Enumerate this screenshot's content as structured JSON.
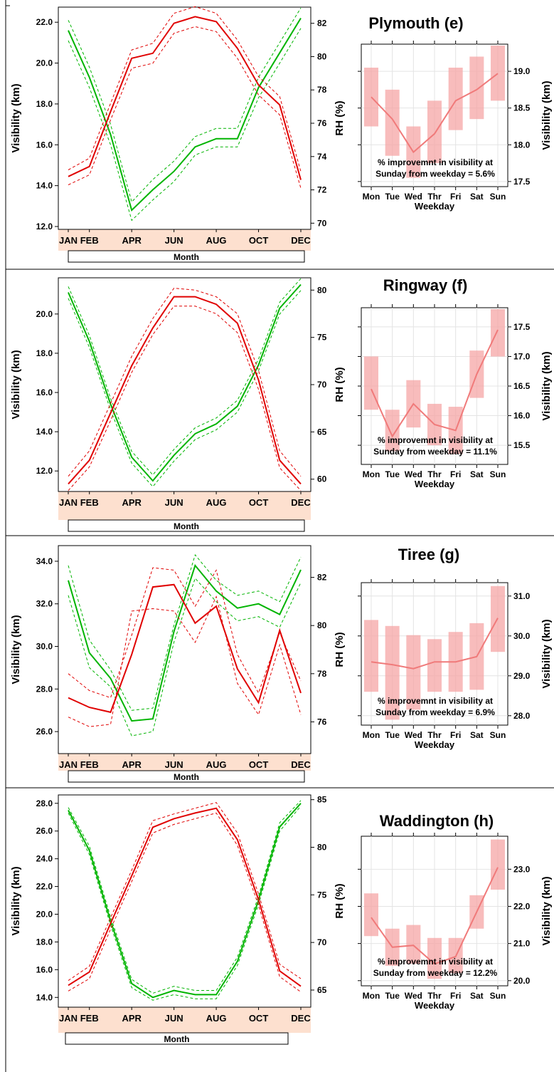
{
  "figure": {
    "panels": [
      {
        "title": "Plymouth (e)",
        "main_chart": {
          "type": "line",
          "xlabel": "Month",
          "ylabel_left": "Visibility (km)",
          "ylabel_right": "RH (%)",
          "x_ticks": [
            "JAN",
            "FEB",
            "APR",
            "JUN",
            "AUG",
            "OCT",
            "DEC"
          ],
          "months": [
            1,
            2,
            3,
            4,
            5,
            6,
            7,
            8,
            9,
            10,
            11,
            12
          ],
          "ylim_left": [
            12.0,
            22.6
          ],
          "yticks_left": [
            "12.0",
            "14.0",
            "16.0",
            "18.0",
            "20.0",
            "22.0"
          ],
          "ylim_right": [
            69.8,
            82.8
          ],
          "yticks_right": [
            "70",
            "72",
            "74",
            "76",
            "78",
            "80",
            "82"
          ],
          "series": [
            {
              "color": "#00b400",
              "axis": "left",
              "dashed": false,
              "values": [
                21.6,
                19.3,
                16.5,
                12.8,
                13.8,
                14.7,
                15.9,
                16.3,
                16.3,
                18.8,
                20.5,
                22.2
              ]
            },
            {
              "color": "#00b400",
              "axis": "left",
              "dashed": true,
              "values": [
                22.1,
                19.8,
                17.0,
                13.2,
                14.3,
                15.2,
                16.4,
                16.8,
                16.8,
                19.3,
                21.0,
                22.7
              ]
            },
            {
              "color": "#00b400",
              "axis": "left",
              "dashed": true,
              "values": [
                21.1,
                18.8,
                16.0,
                12.3,
                13.3,
                14.2,
                15.5,
                15.9,
                15.9,
                18.3,
                20.0,
                21.7
              ]
            },
            {
              "color": "#e00000",
              "axis": "right",
              "dashed": false,
              "values": [
                72.8,
                73.4,
                76.7,
                79.9,
                80.2,
                82.0,
                82.4,
                82.1,
                80.5,
                78.3,
                77.1,
                72.6
              ]
            },
            {
              "color": "#e00000",
              "axis": "right",
              "dashed": true,
              "values": [
                73.2,
                73.9,
                77.2,
                80.4,
                80.8,
                82.6,
                83.0,
                82.6,
                81.0,
                78.8,
                77.6,
                73.1
              ]
            },
            {
              "color": "#e00000",
              "axis": "right",
              "dashed": true,
              "values": [
                72.3,
                72.9,
                76.2,
                79.3,
                79.6,
                81.4,
                81.8,
                81.5,
                79.9,
                77.7,
                76.5,
                72.1
              ]
            }
          ]
        },
        "inset_chart": {
          "type": "bar",
          "xlabel": "Weekday",
          "ylabel": "Visibility (km)",
          "categories": [
            "Mon",
            "Tue",
            "Wed",
            "Thr",
            "Fri",
            "Sat",
            "Sun"
          ],
          "ylim": [
            17.45,
            19.35
          ],
          "yticks": [
            "17.5",
            "18.0",
            "18.5",
            "19.0"
          ],
          "values": [
            18.65,
            18.35,
            17.9,
            18.15,
            18.6,
            18.75,
            18.97
          ],
          "err_low": [
            18.25,
            17.85,
            17.55,
            17.75,
            18.2,
            18.35,
            18.6
          ],
          "err_high": [
            19.05,
            18.75,
            18.25,
            18.6,
            19.05,
            19.2,
            19.35
          ],
          "annotation_lines": [
            "% improvemnt in visibility at",
            "Sunday from weekday = 5.6%"
          ]
        }
      },
      {
        "title": "Ringway (f)",
        "main_chart": {
          "type": "line",
          "xlabel": "Month",
          "ylabel_left": "Visibility (km)",
          "ylabel_right": "RH (%)",
          "x_ticks": [
            "JAN",
            "FEB",
            "APR",
            "JUN",
            "AUG",
            "OCT",
            "DEC"
          ],
          "months": [
            1,
            2,
            3,
            4,
            5,
            6,
            7,
            8,
            9,
            10,
            11,
            12
          ],
          "ylim_left": [
            11.1,
            21.7
          ],
          "yticks_left": [
            "12.0",
            "14.0",
            "16.0",
            "18.0",
            "20.0"
          ],
          "ylim_right": [
            59.0,
            81.0
          ],
          "yticks_right": [
            "60",
            "65",
            "70",
            "75",
            "80"
          ],
          "series": [
            {
              "color": "#00b400",
              "axis": "left",
              "dashed": false,
              "values": [
                21.1,
                18.6,
                15.4,
                12.7,
                11.5,
                12.8,
                13.9,
                14.4,
                15.3,
                17.4,
                20.3,
                21.5
              ]
            },
            {
              "color": "#00b400",
              "axis": "left",
              "dashed": true,
              "values": [
                21.4,
                18.9,
                15.7,
                13.0,
                11.8,
                13.1,
                14.2,
                14.7,
                15.6,
                17.7,
                20.6,
                21.8
              ]
            },
            {
              "color": "#00b400",
              "axis": "left",
              "dashed": true,
              "values": [
                20.8,
                18.3,
                15.1,
                12.4,
                11.2,
                12.5,
                13.6,
                14.1,
                15.0,
                17.1,
                20.0,
                21.2
              ]
            },
            {
              "color": "#e00000",
              "axis": "right",
              "dashed": false,
              "values": [
                59.5,
                62.0,
                67.0,
                72.0,
                76.0,
                79.3,
                79.3,
                78.5,
                76.5,
                70.5,
                62.0,
                59.5
              ]
            },
            {
              "color": "#e00000",
              "axis": "right",
              "dashed": true,
              "values": [
                60.3,
                63.0,
                68.0,
                73.0,
                77.0,
                80.2,
                80.0,
                79.3,
                77.5,
                71.5,
                63.0,
                60.3
              ]
            },
            {
              "color": "#e00000",
              "axis": "right",
              "dashed": true,
              "values": [
                58.8,
                61.3,
                66.2,
                71.3,
                75.3,
                78.3,
                78.3,
                77.5,
                75.5,
                69.5,
                61.2,
                58.8
              ]
            }
          ]
        },
        "inset_chart": {
          "type": "bar",
          "xlabel": "Weekday",
          "ylabel": "Visibility (km)",
          "categories": [
            "Mon",
            "Tue",
            "Wed",
            "Thr",
            "Fri",
            "Sat",
            "Sun"
          ],
          "ylim": [
            15.2,
            17.8
          ],
          "yticks": [
            "15.5",
            "16.0",
            "16.5",
            "17.0",
            "17.5"
          ],
          "values": [
            16.45,
            15.65,
            16.2,
            15.85,
            15.75,
            16.7,
            17.45
          ],
          "err_low": [
            16.1,
            15.4,
            15.8,
            15.5,
            15.35,
            16.3,
            17.0
          ],
          "err_high": [
            17.0,
            16.1,
            16.6,
            16.2,
            16.15,
            17.1,
            17.8
          ],
          "annotation_lines": [
            "% improvemnt in visibility at",
            "Sunday from weekday = 11.1%"
          ]
        }
      },
      {
        "title": "Tiree (g)",
        "main_chart": {
          "type": "line",
          "xlabel": "Month",
          "ylabel_left": "Visibility (km)",
          "ylabel_right": "RH (%)",
          "x_ticks": [
            "JAN",
            "FEB",
            "APR",
            "JUN",
            "AUG",
            "OCT",
            "DEC"
          ],
          "months": [
            1,
            2,
            3,
            4,
            5,
            6,
            7,
            8,
            9,
            10,
            11,
            12
          ],
          "ylim_left": [
            25.1,
            34.6
          ],
          "yticks_left": [
            "26.0",
            "28.0",
            "30.0",
            "32.0",
            "34.0"
          ],
          "ylim_right": [
            74.8,
            83.2
          ],
          "yticks_right": [
            "76",
            "78",
            "80",
            "82"
          ],
          "series": [
            {
              "color": "#00b400",
              "axis": "left",
              "dashed": false,
              "values": [
                33.1,
                29.7,
                28.5,
                26.5,
                26.6,
                30.7,
                33.8,
                32.6,
                31.8,
                32.0,
                31.5,
                33.6
              ]
            },
            {
              "color": "#00b400",
              "axis": "left",
              "dashed": true,
              "values": [
                33.8,
                30.3,
                28.9,
                27.0,
                27.1,
                31.0,
                34.3,
                33.1,
                32.4,
                32.6,
                32.1,
                34.2
              ]
            },
            {
              "color": "#00b400",
              "axis": "left",
              "dashed": true,
              "values": [
                32.4,
                29.0,
                28.1,
                25.8,
                26.0,
                30.2,
                33.2,
                32.1,
                31.2,
                31.4,
                30.9,
                33.0
              ]
            },
            {
              "color": "#e00000",
              "axis": "right",
              "dashed": false,
              "values": [
                77.0,
                76.6,
                76.4,
                78.8,
                81.6,
                81.7,
                80.1,
                80.8,
                78.2,
                76.8,
                79.8,
                77.2
              ]
            },
            {
              "color": "#e00000",
              "axis": "right",
              "dashed": true,
              "values": [
                78.0,
                77.3,
                77.0,
                79.6,
                82.4,
                82.3,
                80.8,
                82.3,
                78.8,
                77.2,
                79.7,
                77.7
              ]
            },
            {
              "color": "#e00000",
              "axis": "right",
              "dashed": true,
              "values": [
                76.2,
                75.8,
                75.9,
                80.6,
                80.7,
                80.6,
                79.3,
                81.2,
                77.6,
                76.3,
                79.2,
                76.3
              ]
            }
          ]
        },
        "inset_chart": {
          "type": "bar",
          "xlabel": "Weekday",
          "ylabel": "Visibility (km)",
          "categories": [
            "Mon",
            "Tue",
            "Wed",
            "Thr",
            "Fri",
            "Sat",
            "Sun"
          ],
          "ylim": [
            27.8,
            31.3
          ],
          "yticks": [
            "28.0",
            "29.0",
            "30.0",
            "31.0"
          ],
          "values": [
            29.35,
            29.28,
            29.18,
            29.35,
            29.35,
            29.48,
            30.45
          ],
          "err_low": [
            28.6,
            27.9,
            28.15,
            28.6,
            28.6,
            28.65,
            29.6
          ],
          "err_high": [
            30.4,
            30.25,
            30.02,
            29.92,
            30.1,
            30.32,
            31.25
          ],
          "annotation_lines": [
            "% improvemnt in visibility at",
            "Sunday from weekday = 6.9%"
          ]
        }
      },
      {
        "title": "Waddington (h)",
        "main_chart": {
          "type": "line",
          "xlabel": "Month",
          "ylabel_left": "Visibility (km)",
          "ylabel_right": "RH (%)",
          "x_ticks": [
            "JAN",
            "FEB",
            "APR",
            "JUN",
            "AUG",
            "OCT",
            "DEC"
          ],
          "months": [
            1,
            2,
            3,
            4,
            5,
            6,
            7,
            8,
            9,
            10,
            11,
            12
          ],
          "ylim_left": [
            13.5,
            28.4
          ],
          "yticks_left": [
            "14.0",
            "16.0",
            "18.0",
            "20.0",
            "22.0",
            "24.0",
            "26.0",
            "28.0"
          ],
          "ylim_right": [
            63.5,
            85.2
          ],
          "yticks_right": [
            "65",
            "70",
            "75",
            "80",
            "85"
          ],
          "series": [
            {
              "color": "#00b400",
              "axis": "left",
              "dashed": false,
              "values": [
                27.5,
                24.6,
                19.5,
                15.0,
                14.0,
                14.5,
                14.2,
                14.2,
                16.6,
                21.0,
                26.3,
                28.0
              ]
            },
            {
              "color": "#00b400",
              "axis": "left",
              "dashed": true,
              "values": [
                27.7,
                24.9,
                19.8,
                15.3,
                14.3,
                14.8,
                14.5,
                14.5,
                16.9,
                21.3,
                26.6,
                28.2
              ]
            },
            {
              "color": "#00b400",
              "axis": "left",
              "dashed": true,
              "values": [
                27.3,
                24.3,
                19.2,
                14.7,
                13.8,
                14.2,
                13.9,
                13.9,
                16.3,
                20.7,
                26.0,
                27.8
              ]
            },
            {
              "color": "#e00000",
              "axis": "right",
              "dashed": false,
              "values": [
                65.5,
                66.9,
                72.0,
                77.0,
                82.1,
                83.0,
                83.6,
                84.1,
                80.8,
                74.5,
                67.0,
                65.4
              ]
            },
            {
              "color": "#e00000",
              "axis": "right",
              "dashed": true,
              "values": [
                66.0,
                67.5,
                72.6,
                77.6,
                82.8,
                83.5,
                84.1,
                84.7,
                81.5,
                75.1,
                67.7,
                66.2
              ]
            },
            {
              "color": "#e00000",
              "axis": "right",
              "dashed": true,
              "values": [
                64.9,
                66.2,
                71.4,
                76.4,
                81.5,
                82.4,
                83.0,
                83.6,
                80.2,
                73.9,
                66.4,
                64.8
              ]
            }
          ]
        },
        "inset_chart": {
          "type": "bar",
          "xlabel": "Weekday",
          "ylabel": "Visibility (km)",
          "categories": [
            "Mon",
            "Tue",
            "Wed",
            "Thr",
            "Fri",
            "Sat",
            "Sun"
          ],
          "ylim": [
            19.9,
            23.85
          ],
          "yticks": [
            "20.0",
            "21.0",
            "22.0",
            "23.0"
          ],
          "values": [
            21.7,
            20.9,
            20.95,
            20.45,
            20.65,
            21.85,
            23.05
          ],
          "err_low": [
            21.2,
            20.4,
            20.45,
            20.05,
            20.2,
            21.4,
            22.45
          ],
          "err_high": [
            22.35,
            21.4,
            21.5,
            21.15,
            21.15,
            22.3,
            23.8
          ],
          "annotation_lines": [
            "% improvemnt in visibility at",
            "Sunday from weekday = 12.2%"
          ]
        }
      }
    ]
  }
}
